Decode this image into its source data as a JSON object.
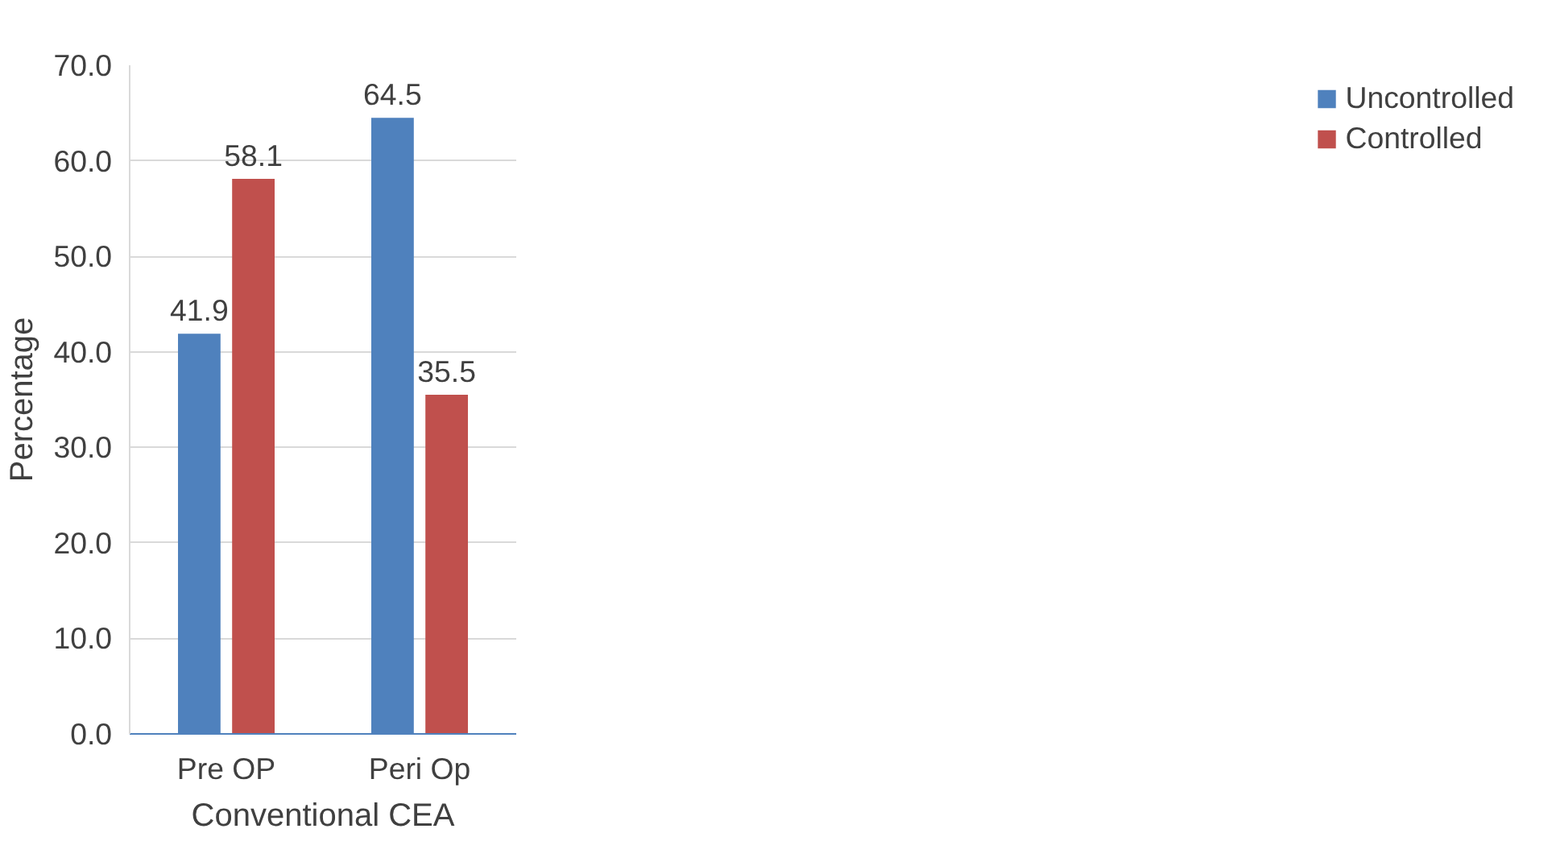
{
  "chart_data": {
    "type": "bar",
    "xlabel": "Conventional CEA",
    "ylabel": "Percentage",
    "categories": [
      "Pre OP",
      "Peri Op"
    ],
    "series": [
      {
        "name": "Uncontrolled",
        "color": "#4f81bd",
        "values": [
          41.9,
          64.5
        ]
      },
      {
        "name": "Controlled",
        "color": "#c0504d",
        "values": [
          58.1,
          35.5
        ]
      }
    ],
    "ylim": [
      0,
      70
    ],
    "yticks": [
      {
        "value": 0,
        "label": "0.0"
      },
      {
        "value": 10,
        "label": "10.0"
      },
      {
        "value": 20,
        "label": "20.0"
      },
      {
        "value": 30,
        "label": "30.0"
      },
      {
        "value": 40,
        "label": "40.0"
      },
      {
        "value": 50,
        "label": "50.0"
      },
      {
        "value": 60,
        "label": "60.0"
      },
      {
        "value": 70,
        "label": "70.0"
      }
    ],
    "grid": "y",
    "legend": "right",
    "data_labels": true
  }
}
